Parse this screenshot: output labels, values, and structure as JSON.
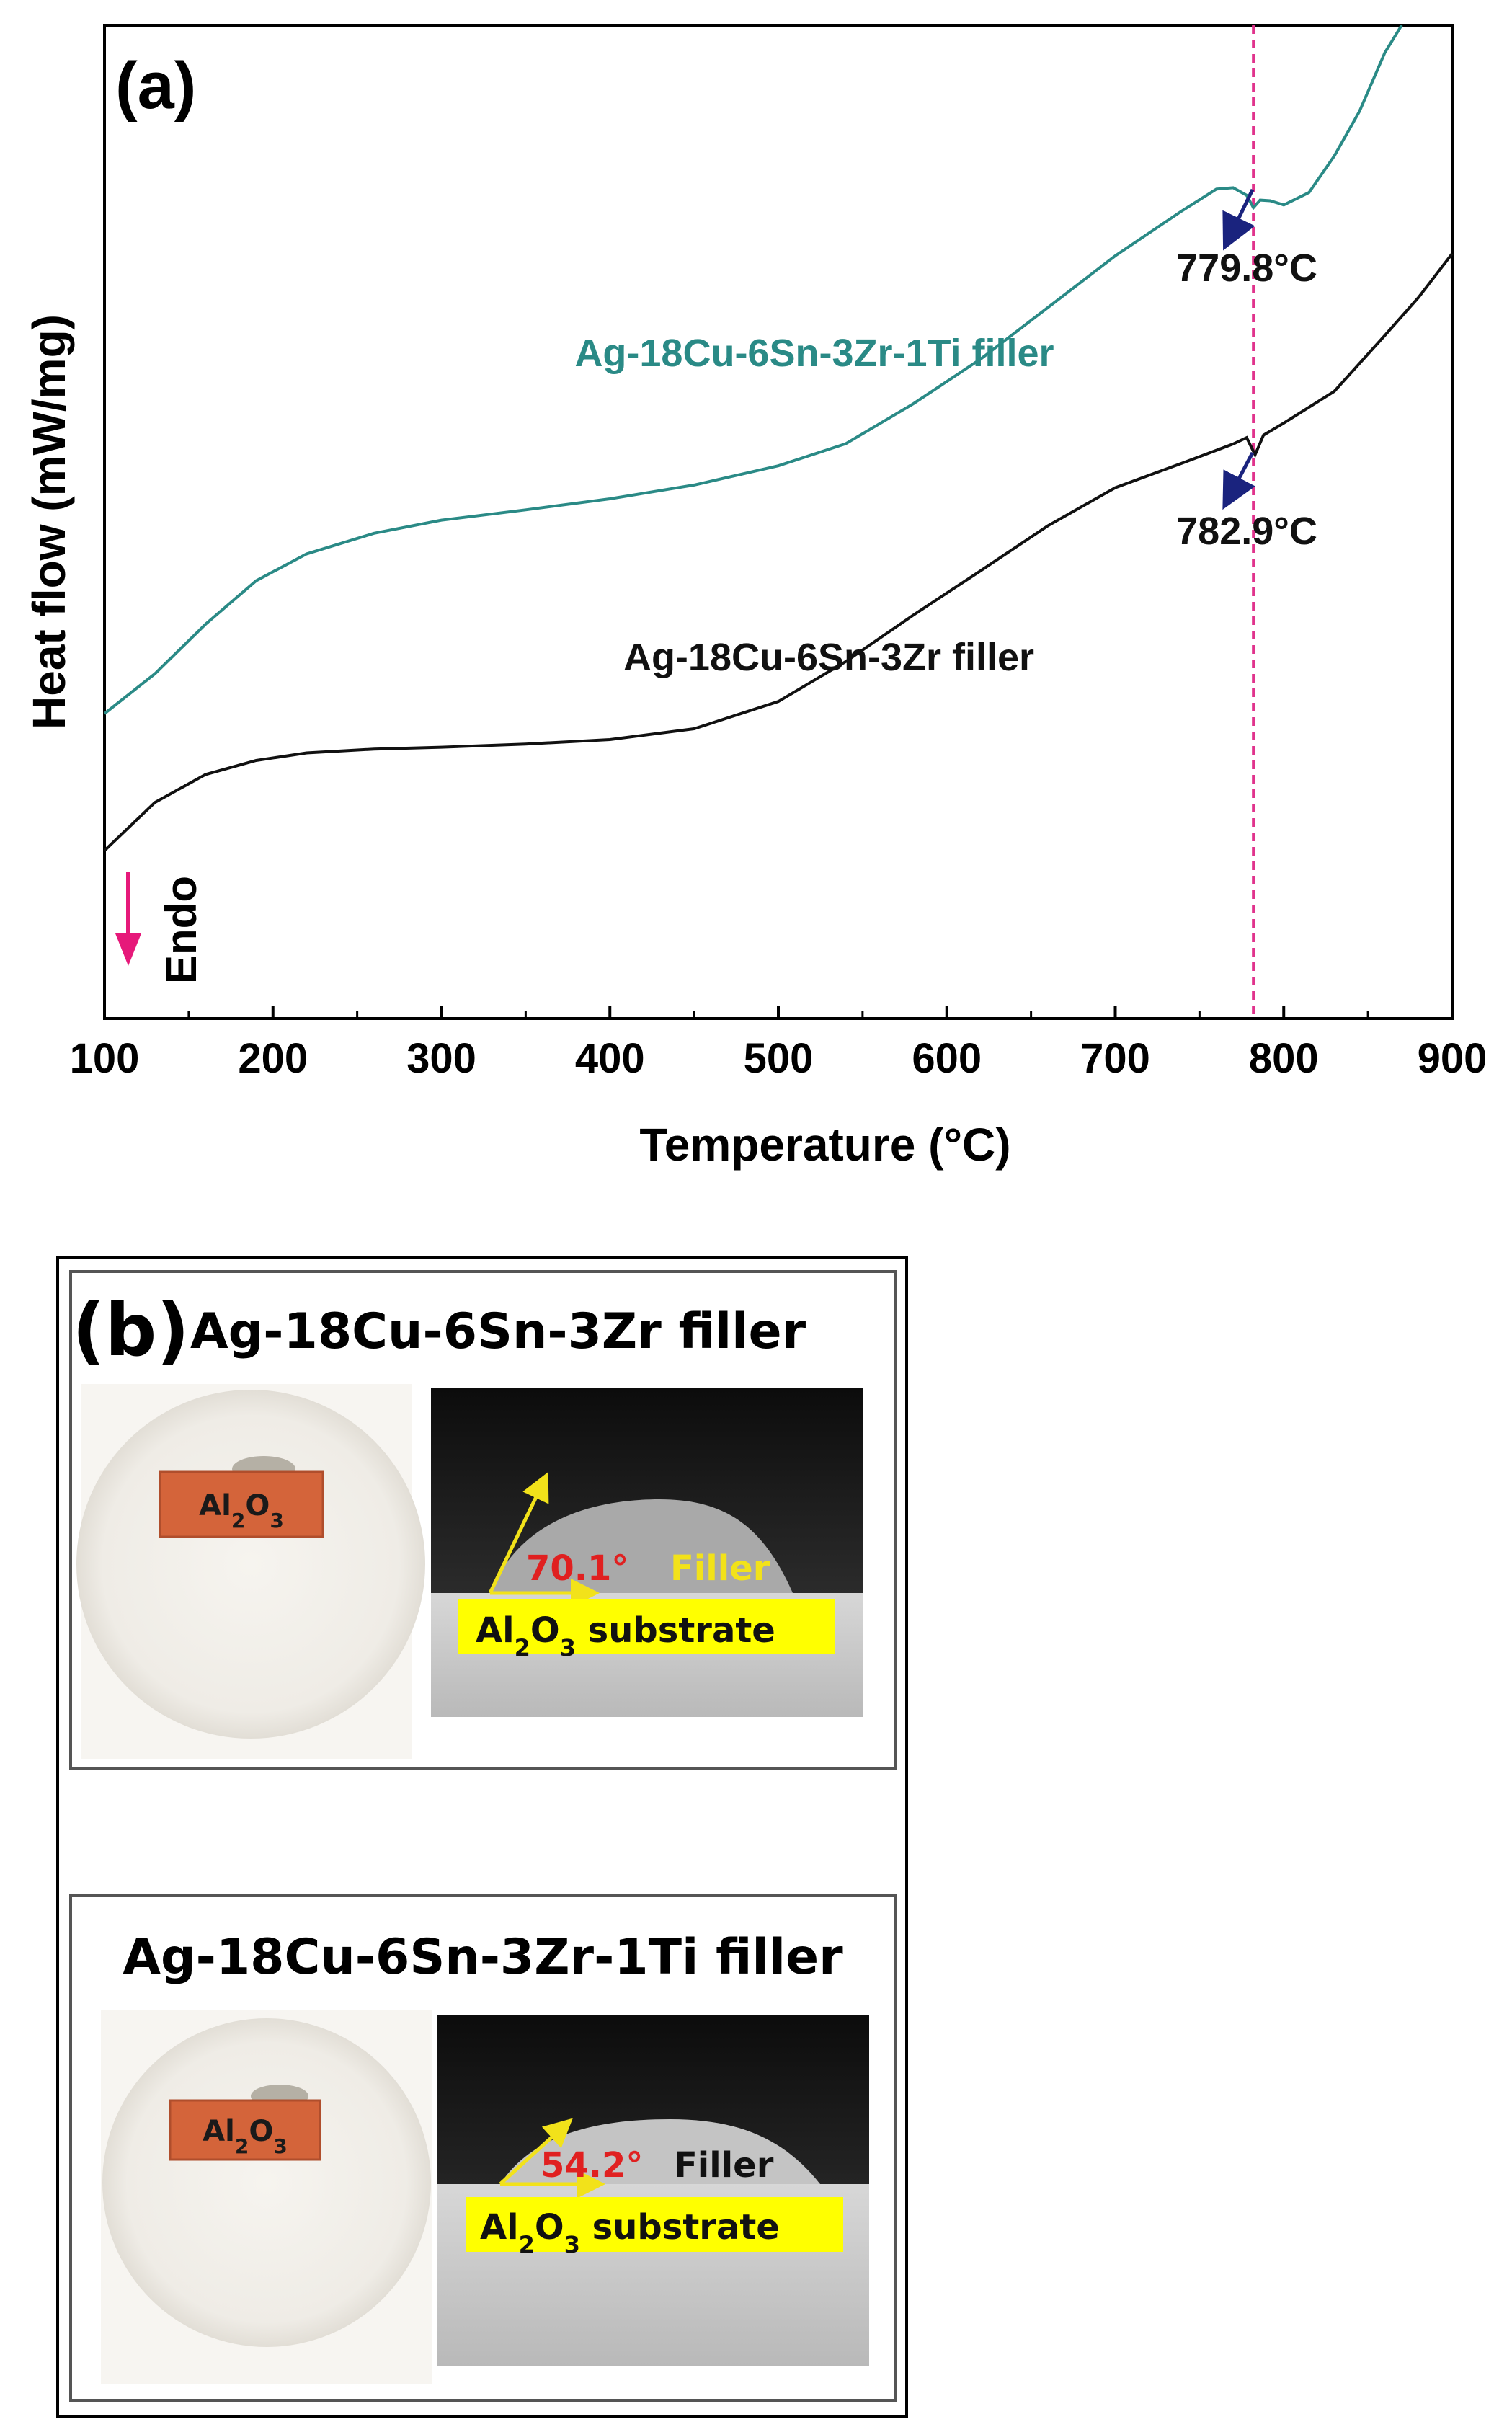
{
  "chart_data": {
    "type": "line",
    "panel_label": "(a)",
    "xlabel": "Temperature (°C)",
    "ylabel": "Heat flow (mW/mg)",
    "xlim": [
      100,
      900
    ],
    "xticks": [
      100,
      200,
      300,
      400,
      500,
      600,
      700,
      800,
      900
    ],
    "y_ticks_shown": false,
    "endo_label": "Endo",
    "endo_arrow_direction": "down",
    "series": [
      {
        "name": "Ag-18Cu-6Sn-3Zr-1Ti filler",
        "color": "#2a8a86",
        "x": [
          100,
          130,
          160,
          190,
          220,
          260,
          300,
          350,
          400,
          450,
          500,
          540,
          580,
          620,
          660,
          700,
          740,
          760,
          770,
          778,
          782,
          786,
          792,
          800,
          815,
          830,
          845,
          860,
          870
        ],
        "y": [
          0.0,
          0.058,
          0.13,
          0.193,
          0.232,
          0.262,
          0.281,
          0.296,
          0.312,
          0.332,
          0.36,
          0.392,
          0.45,
          0.515,
          0.59,
          0.665,
          0.731,
          0.762,
          0.764,
          0.753,
          0.735,
          0.746,
          0.745,
          0.739,
          0.757,
          0.81,
          0.875,
          0.96,
          1.0
        ]
      },
      {
        "name": "Ag-18Cu-6Sn-3Zr filler",
        "color": "#111111",
        "x": [
          100,
          130,
          160,
          190,
          220,
          260,
          300,
          350,
          400,
          450,
          500,
          540,
          580,
          620,
          660,
          700,
          740,
          770,
          778,
          783,
          788,
          800,
          830,
          860,
          880,
          900
        ],
        "y": [
          0.0,
          0.076,
          0.12,
          0.142,
          0.154,
          0.16,
          0.163,
          0.168,
          0.175,
          0.192,
          0.235,
          0.298,
          0.371,
          0.441,
          0.512,
          0.572,
          0.611,
          0.641,
          0.651,
          0.624,
          0.655,
          0.674,
          0.724,
          0.812,
          0.872,
          0.941
        ]
      }
    ],
    "annotations": [
      {
        "text": "779.8°C",
        "x": 779.8,
        "series": "Ag-18Cu-6Sn-3Zr-1Ti filler"
      },
      {
        "text": "782.9°C",
        "x": 782.9,
        "series": "Ag-18Cu-6Sn-3Zr filler"
      }
    ],
    "reference_line_x": 782,
    "reference_line_color": "#e0338c"
  },
  "panel_b": {
    "label": "(b)",
    "cards": [
      {
        "title": "Ag-18Cu-6Sn-3Zr filler",
        "sample_label_main": "Al",
        "sample_label_sub": "2",
        "sample_label_main2": "O",
        "sample_label_sub2": "3",
        "angle": "70.1°",
        "filler_label": "Filler",
        "substrate_main": "Al",
        "substrate_sub": "2",
        "substrate_main2": "O",
        "substrate_sub2": "3",
        "substrate_rest": " substrate"
      },
      {
        "title": "Ag-18Cu-6Sn-3Zr-1Ti filler",
        "sample_label_main": "Al",
        "sample_label_sub": "2",
        "sample_label_main2": "O",
        "sample_label_sub2": "3",
        "angle": "54.2°",
        "filler_label": "Filler",
        "substrate_main": "Al",
        "substrate_sub": "2",
        "substrate_main2": "O",
        "substrate_sub2": "3",
        "substrate_rest": " substrate"
      }
    ]
  },
  "colors": {
    "ti_series": "#2a8a86",
    "base_series": "#111111",
    "dashed_line": "#e0338c",
    "endo_arrow": "#e6197a",
    "annotation_arrow": "#1a237e",
    "angle_text": "#e02020",
    "substrate_bar": "#ffff00",
    "sample_tile": "#d4643a",
    "angle_arrow": "#f2e21a"
  }
}
